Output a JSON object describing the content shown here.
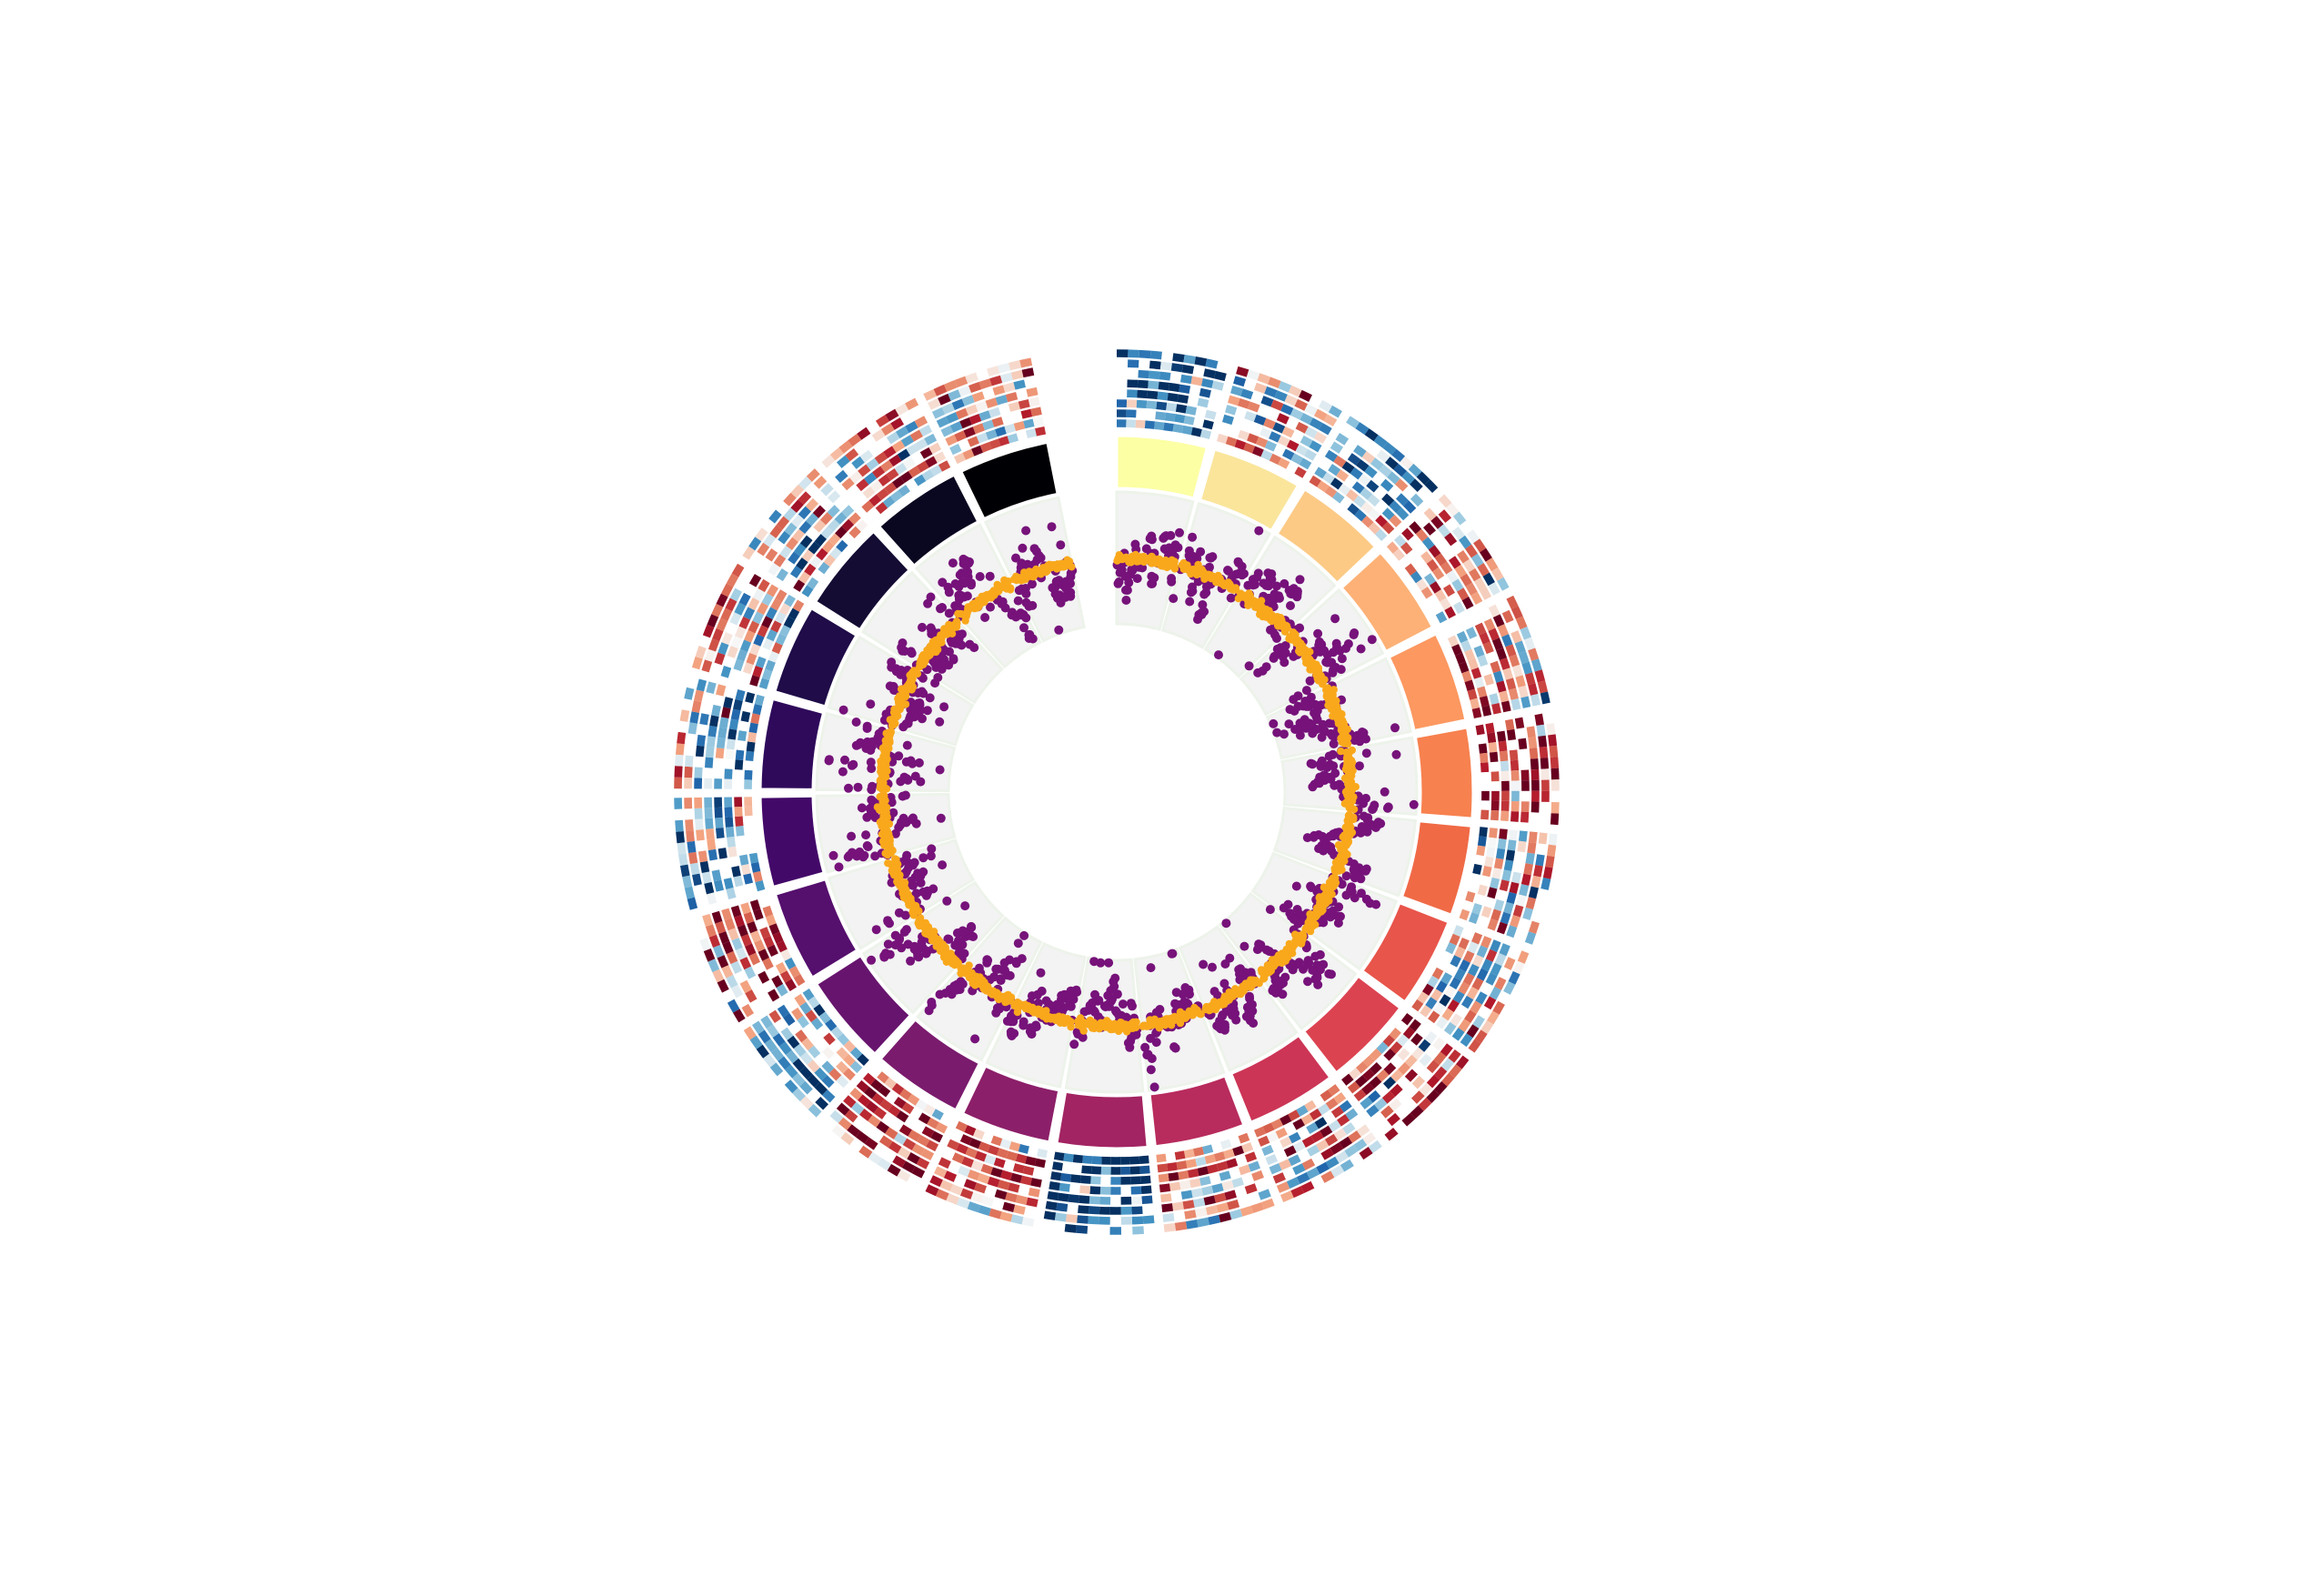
{
  "chart_data": {
    "type": "circos",
    "title": "",
    "legend": "none",
    "tracks": {
      "ideogram": {
        "segment_count": 22,
        "segments": [
          {
            "id": 1,
            "color": "#fcffa4"
          },
          {
            "id": 2,
            "color": "#fae59b"
          },
          {
            "id": 3,
            "color": "#fcca85"
          },
          {
            "id": 4,
            "color": "#fdb176"
          },
          {
            "id": 5,
            "color": "#fc9860"
          },
          {
            "id": 6,
            "color": "#f7814f"
          },
          {
            "id": 7,
            "color": "#f06a46"
          },
          {
            "id": 8,
            "color": "#e8554a"
          },
          {
            "id": 9,
            "color": "#dc4351"
          },
          {
            "id": 10,
            "color": "#cc3556"
          },
          {
            "id": 11,
            "color": "#b82b5d"
          },
          {
            "id": 12,
            "color": "#a22463"
          },
          {
            "id": 13,
            "color": "#8c1f69"
          },
          {
            "id": 14,
            "color": "#7a1b6d"
          },
          {
            "id": 15,
            "color": "#67146e"
          },
          {
            "id": 16,
            "color": "#550f6d"
          },
          {
            "id": 17,
            "color": "#430969"
          },
          {
            "id": 18,
            "color": "#2f0a5b"
          },
          {
            "id": 19,
            "color": "#1f0c48"
          },
          {
            "id": 20,
            "color": "#140c33"
          },
          {
            "id": 21,
            "color": "#0a0820"
          },
          {
            "id": 22,
            "color": "#000004"
          }
        ]
      },
      "scatter": {
        "series": [
          {
            "color": "#76127a",
            "baseline": 0.5,
            "spread": 0.32,
            "noise": "high"
          },
          {
            "color": "#f9a81c",
            "baseline": 0.5,
            "spread": 0.06,
            "noise": "low"
          }
        ],
        "ylim": [
          0,
          1
        ],
        "grid": true
      },
      "heatmap": {
        "colormap": "RdBu_r",
        "rows_per_segment": 8,
        "value_range": [
          -1,
          1
        ]
      }
    }
  }
}
